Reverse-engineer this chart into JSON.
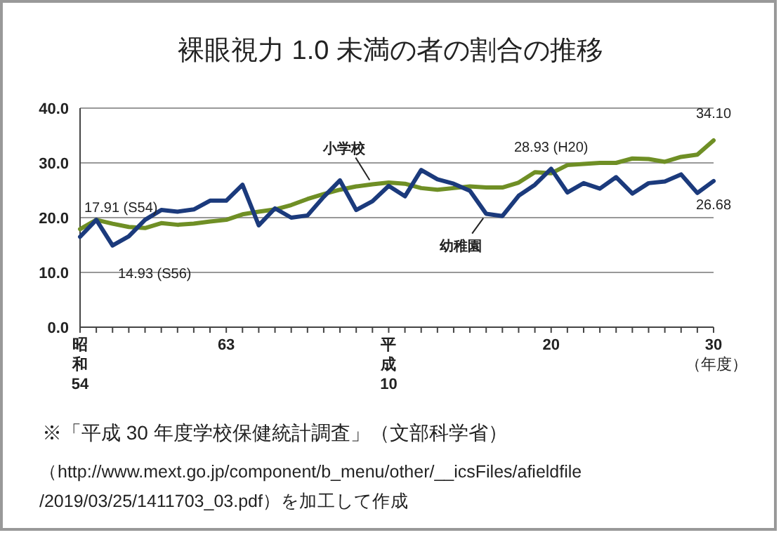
{
  "chart_data": {
    "type": "line",
    "title": "裸眼視力 1.0 未満の者の割合の推移",
    "xlabel": "（年度）",
    "categories": [
      "昭和54",
      null,
      null,
      null,
      null,
      null,
      null,
      null,
      null,
      "63",
      null,
      null,
      null,
      null,
      null,
      null,
      null,
      null,
      null,
      "平成10",
      null,
      null,
      null,
      null,
      null,
      null,
      null,
      null,
      null,
      "20",
      null,
      null,
      null,
      null,
      null,
      null,
      null,
      null,
      null,
      "30"
    ],
    "series": [
      {
        "name": "小学校",
        "color": "#6f8f25",
        "values": [
          17.91,
          19.6,
          18.9,
          18.3,
          18.1,
          19.0,
          18.7,
          18.9,
          19.3,
          19.6,
          20.6,
          21.1,
          21.5,
          22.3,
          23.4,
          24.3,
          25.1,
          25.7,
          26.1,
          26.4,
          26.2,
          25.4,
          25.1,
          25.4,
          25.7,
          25.5,
          25.5,
          26.4,
          28.3,
          28.1,
          29.6,
          29.8,
          30.0,
          30.0,
          30.8,
          30.7,
          30.2,
          31.1,
          31.5,
          34.1
        ]
      },
      {
        "name": "幼稚園",
        "color": "#1b3a7c",
        "values": [
          16.5,
          19.6,
          14.93,
          16.6,
          19.6,
          21.4,
          21.1,
          21.5,
          23.1,
          23.1,
          26.0,
          18.6,
          21.7,
          20.0,
          20.4,
          23.8,
          26.8,
          21.4,
          23.0,
          25.8,
          23.9,
          28.7,
          27.0,
          26.2,
          24.9,
          20.7,
          20.3,
          24.0,
          26.0,
          28.93,
          24.6,
          26.3,
          25.3,
          27.4,
          24.4,
          26.3,
          26.6,
          27.9,
          24.5,
          26.68
        ]
      }
    ],
    "ylim": [
      0,
      40
    ],
    "yticks": [
      {
        "value": 0,
        "label": "0.0"
      },
      {
        "value": 10,
        "label": "10.0"
      },
      {
        "value": 20,
        "label": "20.0"
      },
      {
        "value": 30,
        "label": "30.0"
      },
      {
        "value": 40,
        "label": "40.0"
      }
    ],
    "grid": "y",
    "marker": "none",
    "line_style": "solid",
    "annotations": [
      {
        "text": "17.91 (S54)",
        "x": "昭和54",
        "y": 17.91
      },
      "14.93 (S56)",
      {
        "text": "28.93 (H20)",
        "x": "20",
        "y": 28.93
      },
      {
        "text": "34.10",
        "x": "30",
        "y": 34.1
      },
      {
        "text": "26.68",
        "x": "30",
        "y": 26.68
      },
      "※「平成 30 年度学校保健統計調査」（文部科学省）",
      "（http://www.mext.go.jp/component/b_menu/other/__icsFiles/afieldfile",
      "/2019/03/25/1411703_03.pdf）を加工して作成"
    ]
  }
}
